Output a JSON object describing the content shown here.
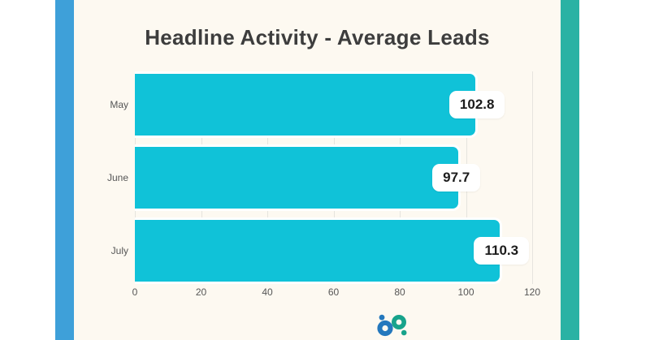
{
  "page": {
    "background_color": "#ffffff",
    "panel_color": "#fdf9f1",
    "left_stripe_color": "#3ea0d9",
    "right_stripe_color": "#2ab2a4",
    "logo_name": "boostpoint-bp-logo",
    "logo_b_color": "#2478bd",
    "logo_p_color": "#17a38b"
  },
  "chart_data": {
    "type": "bar",
    "orientation": "horizontal",
    "title": "Headline Activity - Average Leads",
    "categories": [
      "May",
      "June",
      "July"
    ],
    "values": [
      102.8,
      97.7,
      110.3
    ],
    "value_labels": [
      "102.8",
      "97.7",
      "110.3"
    ],
    "xlabel": "",
    "ylabel": "",
    "xlim": [
      0,
      120
    ],
    "x_ticks": [
      0,
      20,
      40,
      60,
      80,
      100,
      120
    ],
    "grid": true,
    "legend": false,
    "bar_color": "#10c2d8",
    "value_pill_bg": "#ffffff",
    "value_text_color": "#1c1c1c",
    "axis_text_color": "#565656",
    "gridline_color": "#e6e4de",
    "title_color": "#3d3d3d"
  }
}
